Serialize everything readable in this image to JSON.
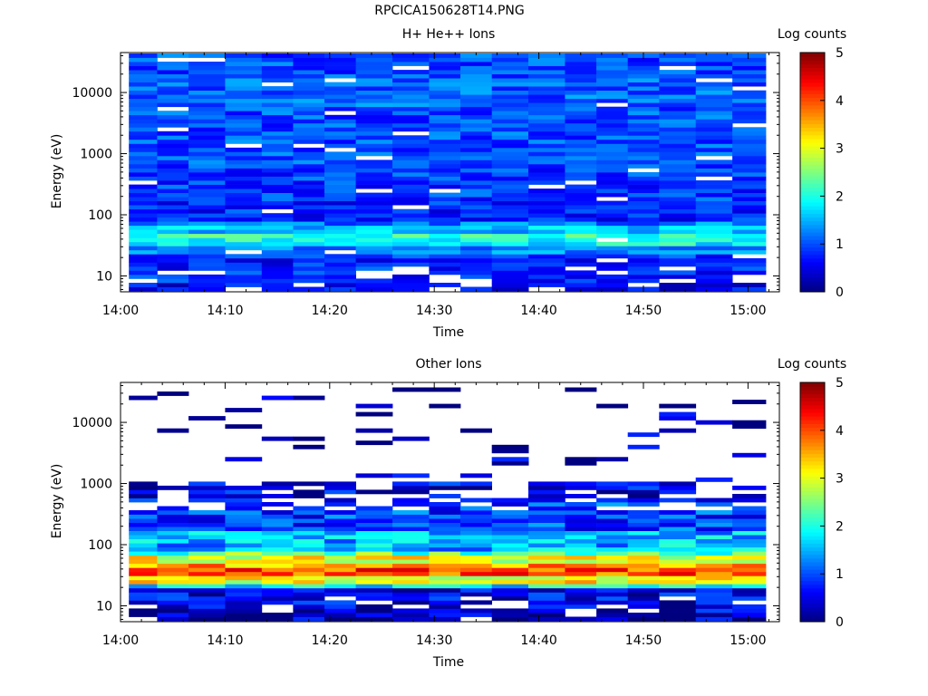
{
  "figure_title": "RPCICA150628T14.PNG",
  "colors": {
    "colormap": [
      "#00007f",
      "#0000ff",
      "#007fff",
      "#00ffff",
      "#7fff7f",
      "#ffff00",
      "#ff7f00",
      "#ff0000",
      "#7f0000"
    ]
  },
  "chart_data": [
    {
      "type": "heatmap",
      "title": "H+ He++ Ions",
      "xlabel": "Time",
      "ylabel": "Energy (eV)",
      "xticks": [
        "14:00",
        "14:10",
        "14:20",
        "14:30",
        "14:40",
        "14:50",
        "15:00"
      ],
      "xlim": [
        "14:00",
        "15:03"
      ],
      "yscale": "log",
      "ylim": [
        5.5,
        45000
      ],
      "yticks": [
        10,
        100,
        1000,
        10000
      ],
      "colorbar": {
        "label": "Log counts",
        "range": [
          0,
          5
        ],
        "ticks": [
          0,
          1,
          2,
          3,
          4,
          5
        ]
      },
      "time_bins": [
        "14:02",
        "14:05",
        "14:08",
        "14:12",
        "14:15",
        "14:18",
        "14:21",
        "14:24",
        "14:28",
        "14:31",
        "14:34",
        "14:37",
        "14:41",
        "14:44",
        "14:47",
        "14:50",
        "14:53",
        "14:57",
        "15:00"
      ],
      "energy_bins_eV": [
        7,
        9.5,
        12,
        15,
        18,
        22,
        27,
        33,
        40,
        48,
        58,
        70,
        100,
        300,
        1000,
        3000,
        10000,
        30000
      ],
      "log_counts_by_energy_band": {
        "7": 0.6,
        "9.5": 0.8,
        "12": 0.8,
        "15": 0.8,
        "18": 0.7,
        "22": 0.9,
        "27": 1.3,
        "33": 1.9,
        "40": 2.0,
        "48": 2.1,
        "58": 1.6,
        "70": 1.2,
        "100": 0.8,
        "300": 0.9,
        "1000": 1.0,
        "3000": 1.0,
        "10000": 1.1,
        "30000": 1.0
      }
    },
    {
      "type": "heatmap",
      "title": "Other Ions",
      "xlabel": "Time",
      "ylabel": "Energy (eV)",
      "xticks": [
        "14:00",
        "14:10",
        "14:20",
        "14:30",
        "14:40",
        "14:50",
        "15:00"
      ],
      "xlim": [
        "14:00",
        "15:03"
      ],
      "yscale": "log",
      "ylim": [
        5.5,
        45000
      ],
      "yticks": [
        10,
        100,
        1000,
        10000
      ],
      "colorbar": {
        "label": "Log counts",
        "range": [
          0,
          5
        ],
        "ticks": [
          0,
          1,
          2,
          3,
          4,
          5
        ]
      },
      "time_bins": [
        "14:02",
        "14:05",
        "14:08",
        "14:12",
        "14:15",
        "14:18",
        "14:21",
        "14:24",
        "14:28",
        "14:31",
        "14:34",
        "14:37",
        "14:41",
        "14:44",
        "14:47",
        "14:50",
        "14:53",
        "14:57",
        "15:00"
      ],
      "energy_bins_eV": [
        7,
        9.5,
        12,
        15,
        18,
        22,
        27,
        33,
        40,
        48,
        58,
        70,
        100,
        300,
        1000,
        3000,
        10000,
        30000
      ],
      "log_counts_by_energy_band": {
        "7": 0.3,
        "9.5": 0.4,
        "12": 0.5,
        "15": 0.5,
        "18": 0.6,
        "22": 1.8,
        "27": 3.1,
        "33": 4.0,
        "40": 4.1,
        "48": 3.6,
        "58": 3.0,
        "70": 2.3,
        "100": 1.5,
        "300": 0.9,
        "1000": 0.5,
        "3000": 0.3,
        "10000": 0.2,
        "30000": 0.2
      }
    }
  ]
}
